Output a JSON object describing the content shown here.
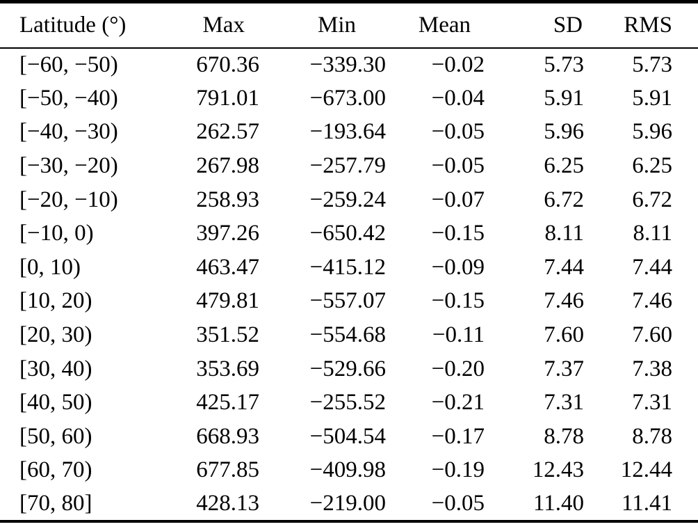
{
  "table": {
    "columns": [
      {
        "key": "latitude",
        "label": "Latitude (°)"
      },
      {
        "key": "max",
        "label": "Max"
      },
      {
        "key": "min",
        "label": "Min"
      },
      {
        "key": "mean",
        "label": "Mean"
      },
      {
        "key": "sd",
        "label": "SD"
      },
      {
        "key": "rms",
        "label": "RMS"
      }
    ],
    "rows": [
      [
        "[−60, −50)",
        "670.36",
        "−339.30",
        "−0.02",
        "5.73",
        "5.73"
      ],
      [
        "[−50, −40)",
        "791.01",
        "−673.00",
        "−0.04",
        "5.91",
        "5.91"
      ],
      [
        "[−40, −30)",
        "262.57",
        "−193.64",
        "−0.05",
        "5.96",
        "5.96"
      ],
      [
        "[−30, −20)",
        "267.98",
        "−257.79",
        "−0.05",
        "6.25",
        "6.25"
      ],
      [
        "[−20, −10)",
        "258.93",
        "−259.24",
        "−0.07",
        "6.72",
        "6.72"
      ],
      [
        "[−10, 0)",
        "397.26",
        "−650.42",
        "−0.15",
        "8.11",
        "8.11"
      ],
      [
        "[0, 10)",
        "463.47",
        "−415.12",
        "−0.09",
        "7.44",
        "7.44"
      ],
      [
        "[10, 20)",
        "479.81",
        "−557.07",
        "−0.15",
        "7.46",
        "7.46"
      ],
      [
        "[20, 30)",
        "351.52",
        "−554.68",
        "−0.11",
        "7.60",
        "7.60"
      ],
      [
        "[30, 40)",
        "353.69",
        "−529.66",
        "−0.20",
        "7.37",
        "7.38"
      ],
      [
        "[40, 50)",
        "425.17",
        "−255.52",
        "−0.21",
        "7.31",
        "7.31"
      ],
      [
        "[50, 60)",
        "668.93",
        "−504.54",
        "−0.17",
        "8.78",
        "8.78"
      ],
      [
        "[60, 70)",
        "677.85",
        "−409.98",
        "−0.19",
        "12.43",
        "12.44"
      ],
      [
        "[70, 80]",
        "428.13",
        "−219.00",
        "−0.05",
        "11.40",
        "11.41"
      ]
    ]
  },
  "chart_data": {
    "type": "table",
    "title": "",
    "columns": [
      "Latitude (°)",
      "Max",
      "Min",
      "Mean",
      "SD",
      "RMS"
    ],
    "rows": [
      {
        "latitude": "[-60, -50)",
        "max": 670.36,
        "min": -339.3,
        "mean": -0.02,
        "sd": 5.73,
        "rms": 5.73
      },
      {
        "latitude": "[-50, -40)",
        "max": 791.01,
        "min": -673.0,
        "mean": -0.04,
        "sd": 5.91,
        "rms": 5.91
      },
      {
        "latitude": "[-40, -30)",
        "max": 262.57,
        "min": -193.64,
        "mean": -0.05,
        "sd": 5.96,
        "rms": 5.96
      },
      {
        "latitude": "[-30, -20)",
        "max": 267.98,
        "min": -257.79,
        "mean": -0.05,
        "sd": 6.25,
        "rms": 6.25
      },
      {
        "latitude": "[-20, -10)",
        "max": 258.93,
        "min": -259.24,
        "mean": -0.07,
        "sd": 6.72,
        "rms": 6.72
      },
      {
        "latitude": "[-10, 0)",
        "max": 397.26,
        "min": -650.42,
        "mean": -0.15,
        "sd": 8.11,
        "rms": 8.11
      },
      {
        "latitude": "[0, 10)",
        "max": 463.47,
        "min": -415.12,
        "mean": -0.09,
        "sd": 7.44,
        "rms": 7.44
      },
      {
        "latitude": "[10, 20)",
        "max": 479.81,
        "min": -557.07,
        "mean": -0.15,
        "sd": 7.46,
        "rms": 7.46
      },
      {
        "latitude": "[20, 30)",
        "max": 351.52,
        "min": -554.68,
        "mean": -0.11,
        "sd": 7.6,
        "rms": 7.6
      },
      {
        "latitude": "[30, 40)",
        "max": 353.69,
        "min": -529.66,
        "mean": -0.2,
        "sd": 7.37,
        "rms": 7.38
      },
      {
        "latitude": "[40, 50)",
        "max": 425.17,
        "min": -255.52,
        "mean": -0.21,
        "sd": 7.31,
        "rms": 7.31
      },
      {
        "latitude": "[50, 60)",
        "max": 668.93,
        "min": -504.54,
        "mean": -0.17,
        "sd": 8.78,
        "rms": 8.78
      },
      {
        "latitude": "[60, 70)",
        "max": 677.85,
        "min": -409.98,
        "mean": -0.19,
        "sd": 12.43,
        "rms": 12.44
      },
      {
        "latitude": "[70, 80]",
        "max": 428.13,
        "min": -219.0,
        "mean": -0.05,
        "sd": 11.4,
        "rms": 11.41
      }
    ],
    "colors": {
      "text": "#000000",
      "background": "#ffffff",
      "rule": "#000000"
    }
  }
}
